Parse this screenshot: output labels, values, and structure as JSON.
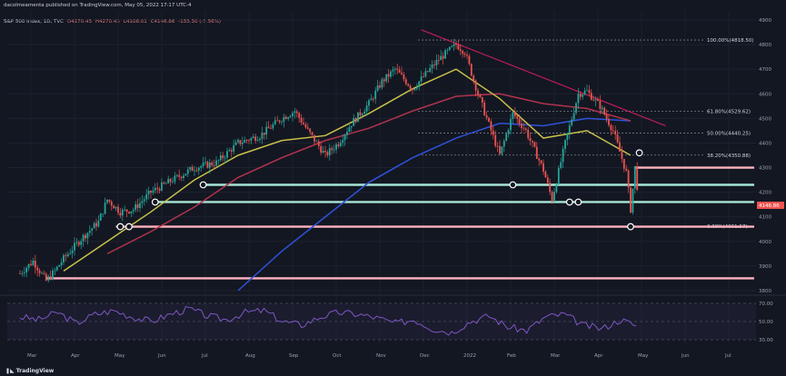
{
  "header": {
    "published": "dacolmeamenta published on TradingView.com, May 05, 2022 17:17 UTC-4",
    "symbol": "S&P 500 Index, 1D, TVC",
    "o": "O4270.43",
    "h": "H4270.43",
    "l": "L4106.01",
    "c": "C4146.86",
    "chg": "-153.30 (-3.56%)"
  },
  "footer": {
    "brand": "TradingView"
  },
  "colors": {
    "bg": "#131722",
    "up": "#26a69a",
    "down": "#ef5350",
    "ma_yellow": "#c9c14a",
    "ma_red": "#b2334d",
    "ma_blue": "#2f52d8",
    "support": "#a8e6d6",
    "strong_support": "#ffb3be",
    "trend": "#e91e63",
    "rsi": "#7e57c2"
  },
  "chart_data": [
    {
      "type": "candlestick",
      "title": "S&P 500 Index, 1D, TVC",
      "x": [
        "Mar",
        "Apr",
        "May",
        "Jun",
        "Jul",
        "Aug",
        "Sep",
        "Oct",
        "Nov",
        "Dec",
        "2022",
        "Feb",
        "Mar",
        "Apr",
        "May",
        "Jun",
        "Jul"
      ],
      "yticks": [
        3800,
        3900,
        4000,
        4100,
        4200,
        4300,
        4400,
        4500,
        4600,
        4700,
        4800,
        4900
      ],
      "ylim": [
        3800,
        4900
      ],
      "close_path": [
        [
          0,
          3870
        ],
        [
          0.3,
          3920
        ],
        [
          0.6,
          3840
        ],
        [
          0.8,
          3880
        ],
        [
          1,
          3930
        ],
        [
          1.4,
          4010
        ],
        [
          1.8,
          4080
        ],
        [
          2,
          4170
        ],
        [
          2.3,
          4120
        ],
        [
          2.6,
          4130
        ],
        [
          3,
          4200
        ],
        [
          3.5,
          4250
        ],
        [
          4,
          4300
        ],
        [
          4.5,
          4320
        ],
        [
          5,
          4400
        ],
        [
          5.5,
          4430
        ],
        [
          6,
          4500
        ],
        [
          6.3,
          4530
        ],
        [
          6.6,
          4450
        ],
        [
          7,
          4350
        ],
        [
          7.3,
          4400
        ],
        [
          7.6,
          4480
        ],
        [
          8,
          4560
        ],
        [
          8.3,
          4650
        ],
        [
          8.6,
          4700
        ],
        [
          9,
          4620
        ],
        [
          9.3,
          4680
        ],
        [
          9.6,
          4740
        ],
        [
          10,
          4800
        ],
        [
          10.2,
          4770
        ],
        [
          10.5,
          4600
        ],
        [
          10.8,
          4450
        ],
        [
          11,
          4350
        ],
        [
          11.3,
          4520
        ],
        [
          11.6,
          4450
        ],
        [
          12,
          4290
        ],
        [
          12.2,
          4170
        ],
        [
          12.5,
          4400
        ],
        [
          12.8,
          4600
        ],
        [
          13,
          4610
        ],
        [
          13.3,
          4550
        ],
        [
          13.6,
          4450
        ],
        [
          13.9,
          4280
        ],
        [
          14,
          4130
        ],
        [
          14.1,
          4300
        ],
        [
          14.2,
          4146.86
        ]
      ],
      "ma_50": [
        [
          1,
          3880
        ],
        [
          2,
          4000
        ],
        [
          3,
          4120
        ],
        [
          4,
          4250
        ],
        [
          5,
          4350
        ],
        [
          6,
          4410
        ],
        [
          7,
          4430
        ],
        [
          8,
          4520
        ],
        [
          9,
          4620
        ],
        [
          10,
          4700
        ],
        [
          11,
          4580
        ],
        [
          12,
          4420
        ],
        [
          13,
          4450
        ],
        [
          14,
          4350
        ]
      ],
      "ma_100": [
        [
          2,
          3950
        ],
        [
          3,
          4040
        ],
        [
          4,
          4140
        ],
        [
          5,
          4260
        ],
        [
          6,
          4340
        ],
        [
          7,
          4410
        ],
        [
          8,
          4460
        ],
        [
          9,
          4530
        ],
        [
          10,
          4590
        ],
        [
          11,
          4600
        ],
        [
          12,
          4560
        ],
        [
          13,
          4540
        ],
        [
          14,
          4490
        ]
      ],
      "ma_200": [
        [
          5,
          3800
        ],
        [
          6,
          3960
        ],
        [
          7,
          4100
        ],
        [
          8,
          4240
        ],
        [
          9,
          4340
        ],
        [
          10,
          4420
        ],
        [
          11,
          4480
        ],
        [
          12,
          4470
        ],
        [
          13,
          4500
        ],
        [
          14,
          4490
        ]
      ],
      "fibonacci": [
        {
          "label": "100.00%(4818.50)",
          "value": 4818.5
        },
        {
          "label": "61.80%(4529.62)",
          "value": 4529.62
        },
        {
          "label": "50.00%(4440.25)",
          "value": 4440.25
        },
        {
          "label": "38.20%(4350.88)",
          "value": 4350.88
        },
        {
          "label": "0.00%(4061.57)",
          "value": 4061.57
        }
      ],
      "support_lines": [
        {
          "value": 4300,
          "from": 14.1,
          "kind": "resistance"
        },
        {
          "value": 4230,
          "from": 4.2,
          "kind": "support"
        },
        {
          "value": 4160,
          "from": 3.1,
          "kind": "support"
        },
        {
          "value": 4060,
          "from": 2.2,
          "kind": "strong"
        },
        {
          "value": 3850,
          "from": 0.6,
          "kind": "strong"
        }
      ],
      "trendline": [
        [
          9.2,
          4860
        ],
        [
          14.8,
          4470
        ]
      ],
      "pivots": [
        [
          2.3,
          4060
        ],
        [
          2.5,
          4060
        ],
        [
          3.1,
          4160
        ],
        [
          4.2,
          4230
        ],
        [
          11.3,
          4230
        ],
        [
          12.6,
          4160
        ],
        [
          12.8,
          4160
        ],
        [
          14,
          4060
        ],
        [
          14.2,
          4360
        ]
      ],
      "grid": true
    },
    {
      "type": "line",
      "title": "RSI",
      "ylim": [
        30,
        70
      ],
      "yticks": [
        30,
        40,
        50,
        60,
        70
      ],
      "bands": [
        30,
        50,
        70
      ],
      "values": [
        55,
        52,
        60,
        48,
        58,
        62,
        55,
        50,
        58,
        64,
        56,
        52,
        60,
        62,
        50,
        46,
        55,
        60,
        58,
        54,
        48,
        52,
        42,
        38,
        50,
        56,
        44,
        40,
        55,
        58,
        46,
        42,
        52,
        44
      ]
    }
  ]
}
